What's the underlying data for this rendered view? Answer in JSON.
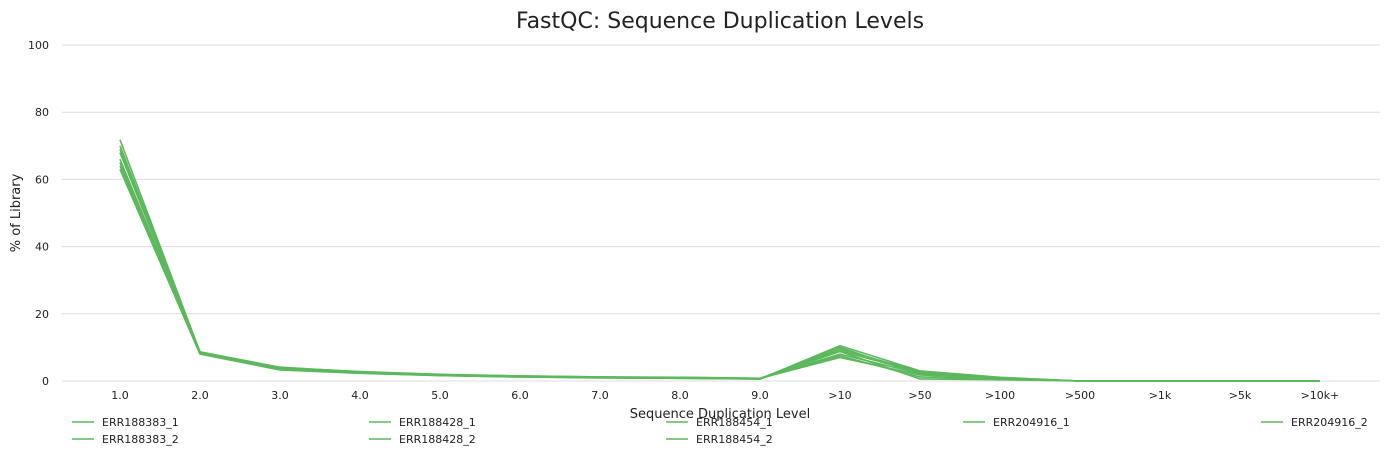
{
  "chart_data": {
    "type": "line",
    "title": "FastQC: Sequence Duplication Levels",
    "xlabel": "Sequence Duplication Level",
    "ylabel": "% of Library",
    "ylim": [
      0,
      100
    ],
    "yticks": [
      0,
      20,
      40,
      60,
      80,
      100
    ],
    "categories": [
      "1.0",
      "2.0",
      "3.0",
      "4.0",
      "5.0",
      "6.0",
      "7.0",
      "8.0",
      "9.0",
      ">10",
      ">50",
      ">100",
      ">500",
      ">1k",
      ">5k",
      ">10k+"
    ],
    "grid": true,
    "legend_position": "bottom",
    "series_color": "#5cb85c",
    "series": [
      {
        "name": "ERR188383_1",
        "values": [
          71.8,
          8.6,
          4.1,
          2.7,
          1.9,
          1.5,
          1.2,
          1.1,
          0.8,
          7.0,
          1.8,
          0.7,
          0.0,
          0.0,
          0.0,
          0.0
        ]
      },
      {
        "name": "ERR188383_2",
        "values": [
          69.0,
          8.4,
          3.9,
          2.6,
          1.8,
          1.4,
          1.1,
          1.0,
          0.7,
          8.0,
          2.2,
          0.8,
          0.0,
          0.0,
          0.0,
          0.0
        ]
      },
      {
        "name": "ERR188428_1",
        "values": [
          65.0,
          8.2,
          3.6,
          2.5,
          1.7,
          1.3,
          1.0,
          0.9,
          0.6,
          9.5,
          2.8,
          1.0,
          0.0,
          0.0,
          0.0,
          0.0
        ]
      },
      {
        "name": "ERR188428_2",
        "values": [
          63.0,
          8.0,
          3.3,
          2.3,
          1.6,
          1.2,
          0.9,
          0.8,
          0.6,
          10.5,
          3.0,
          1.1,
          0.0,
          0.0,
          0.0,
          0.0
        ]
      },
      {
        "name": "ERR188454_1",
        "values": [
          68.0,
          8.5,
          3.8,
          2.6,
          1.8,
          1.4,
          1.1,
          1.0,
          0.7,
          7.5,
          1.2,
          0.6,
          0.0,
          0.0,
          0.0,
          0.0
        ]
      },
      {
        "name": "ERR188454_2",
        "values": [
          66.0,
          8.3,
          3.7,
          2.5,
          1.7,
          1.3,
          1.0,
          0.9,
          0.6,
          8.8,
          0.6,
          0.4,
          0.0,
          0.0,
          0.0,
          0.0
        ]
      },
      {
        "name": "ERR204916_1",
        "values": [
          70.0,
          8.7,
          4.0,
          2.8,
          2.0,
          1.5,
          1.2,
          1.1,
          0.8,
          9.0,
          2.5,
          0.9,
          0.0,
          0.0,
          0.0,
          0.0
        ]
      },
      {
        "name": "ERR204916_2",
        "values": [
          64.0,
          8.1,
          3.5,
          2.4,
          1.6,
          1.2,
          1.0,
          0.8,
          0.6,
          10.0,
          2.0,
          0.8,
          0.0,
          0.0,
          0.0,
          0.0
        ]
      }
    ]
  }
}
